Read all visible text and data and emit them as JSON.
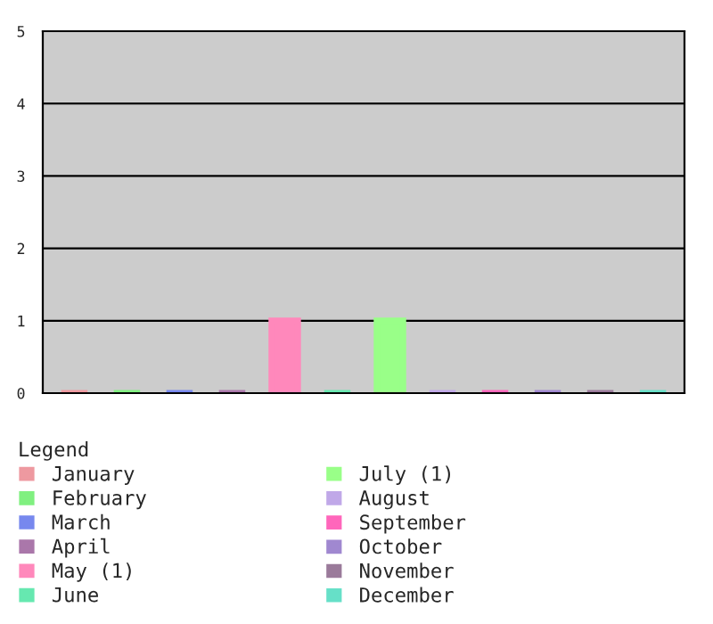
{
  "chart_data": {
    "type": "bar",
    "categories": [
      null,
      null,
      null,
      null,
      null,
      null,
      null,
      null,
      null,
      null,
      null,
      null
    ],
    "series": [
      {
        "name": "January",
        "color": "#ee99a0",
        "values": [
          0,
          null,
          null,
          null,
          null,
          null,
          null,
          null,
          null,
          null,
          null,
          null
        ]
      },
      {
        "name": "February",
        "color": "#80f080",
        "values": [
          null,
          0,
          null,
          null,
          null,
          null,
          null,
          null,
          null,
          null,
          null,
          null
        ]
      },
      {
        "name": "March",
        "color": "#7788ee",
        "values": [
          null,
          null,
          0,
          null,
          null,
          null,
          null,
          null,
          null,
          null,
          null,
          null
        ]
      },
      {
        "name": "April",
        "color": "#aa77aa",
        "values": [
          null,
          null,
          null,
          0,
          null,
          null,
          null,
          null,
          null,
          null,
          null,
          null
        ]
      },
      {
        "name": "May (1)",
        "color": "#ff88bb",
        "values": [
          null,
          null,
          null,
          null,
          1,
          null,
          null,
          null,
          null,
          null,
          null,
          null
        ]
      },
      {
        "name": "June",
        "color": "#66e8b0",
        "values": [
          null,
          null,
          null,
          null,
          null,
          0,
          null,
          null,
          null,
          null,
          null,
          null
        ]
      },
      {
        "name": "July (1)",
        "color": "#99ff88",
        "values": [
          null,
          null,
          null,
          null,
          null,
          null,
          1,
          null,
          null,
          null,
          null,
          null
        ]
      },
      {
        "name": "August",
        "color": "#c0a8e8",
        "values": [
          null,
          null,
          null,
          null,
          null,
          null,
          null,
          0,
          null,
          null,
          null,
          null
        ]
      },
      {
        "name": "September",
        "color": "#ff66bb",
        "values": [
          null,
          null,
          null,
          null,
          null,
          null,
          null,
          null,
          0,
          null,
          null,
          null
        ]
      },
      {
        "name": "October",
        "color": "#a088d0",
        "values": [
          null,
          null,
          null,
          null,
          null,
          null,
          null,
          null,
          null,
          0,
          null,
          null
        ]
      },
      {
        "name": "November",
        "color": "#9a7a9a",
        "values": [
          null,
          null,
          null,
          null,
          null,
          null,
          null,
          null,
          null,
          null,
          0,
          null
        ]
      },
      {
        "name": "December",
        "color": "#66e0c8",
        "values": [
          null,
          null,
          null,
          null,
          null,
          null,
          null,
          null,
          null,
          null,
          null,
          0
        ]
      }
    ],
    "ylim": [
      0,
      5
    ],
    "yticks": [
      0,
      1,
      2,
      3,
      4,
      5
    ],
    "grid": "y",
    "legend": "bottom",
    "legend_title": "Legend"
  }
}
